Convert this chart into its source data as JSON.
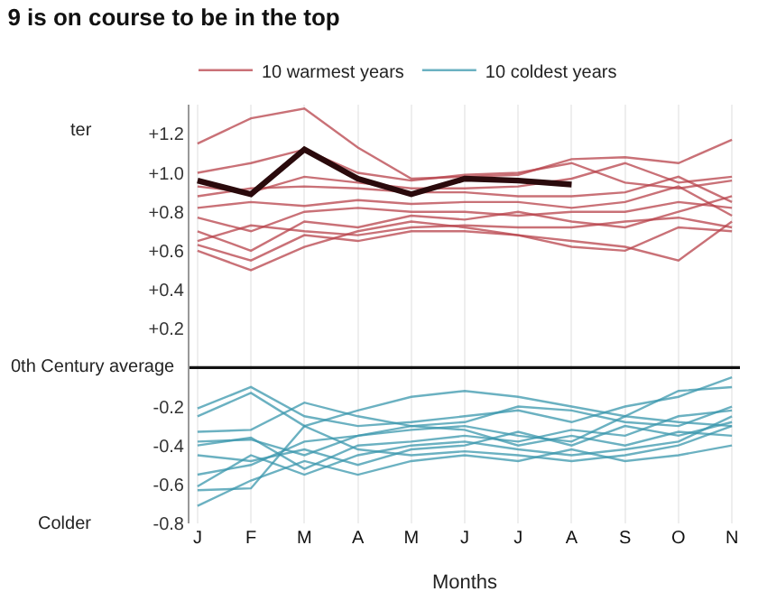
{
  "chart_data": {
    "type": "line",
    "title": "9 is on course to be in the top",
    "categories": [
      "J",
      "F",
      "M",
      "A",
      "M",
      "J",
      "J",
      "A",
      "S",
      "O",
      "N"
    ],
    "xlabel": "Months",
    "ylim": [
      -0.8,
      1.35
    ],
    "yticks": [
      {
        "value": 1.2,
        "label": "+1.2"
      },
      {
        "value": 1.0,
        "label": "+1.0"
      },
      {
        "value": 0.8,
        "label": "+0.8"
      },
      {
        "value": 0.6,
        "label": "+0.6"
      },
      {
        "value": 0.4,
        "label": "+0.4"
      },
      {
        "value": 0.2,
        "label": "+0.2"
      },
      -0.2,
      -0.4,
      -0.6,
      -0.8
    ],
    "grid": "x",
    "legend": "top left",
    "marker": "none",
    "line_style": "solid",
    "ref_lines": [
      {
        "axis": "y",
        "value": 0,
        "label": "0th Century average",
        "color": "#111111"
      }
    ],
    "annotations": [
      "ter",
      "Colder"
    ],
    "series": [
      {
        "name": "10 warmest years",
        "color": "#b8424a",
        "values": [
          1.15,
          1.28,
          1.33,
          1.13,
          0.97,
          0.98,
          0.99,
          1.07,
          1.08,
          1.05,
          1.17
        ]
      },
      {
        "color": "#b8424a",
        "values": [
          1.0,
          1.05,
          1.12,
          1.0,
          0.96,
          0.99,
          1.0,
          1.05,
          0.95,
          0.92,
          0.96
        ]
      },
      {
        "color": "#b8424a",
        "values": [
          0.93,
          0.9,
          0.98,
          0.95,
          0.92,
          0.92,
          0.93,
          0.97,
          1.05,
          0.95,
          0.98
        ]
      },
      {
        "color": "#b8424a",
        "values": [
          0.88,
          0.92,
          0.93,
          0.92,
          0.9,
          0.9,
          0.88,
          0.88,
          0.9,
          0.98,
          0.85
        ]
      },
      {
        "color": "#b8424a",
        "values": [
          0.82,
          0.85,
          0.83,
          0.86,
          0.84,
          0.85,
          0.85,
          0.82,
          0.85,
          0.93,
          0.78
        ]
      },
      {
        "color": "#b8424a",
        "values": [
          0.77,
          0.7,
          0.8,
          0.82,
          0.8,
          0.8,
          0.78,
          0.8,
          0.8,
          0.85,
          0.82
        ]
      },
      {
        "color": "#b8424a",
        "values": [
          0.7,
          0.6,
          0.75,
          0.72,
          0.78,
          0.76,
          0.8,
          0.75,
          0.72,
          0.8,
          0.88
        ]
      },
      {
        "color": "#b8424a",
        "values": [
          0.65,
          0.73,
          0.7,
          0.68,
          0.72,
          0.73,
          0.72,
          0.72,
          0.75,
          0.77,
          0.72
        ]
      },
      {
        "color": "#b8424a",
        "values": [
          0.63,
          0.55,
          0.68,
          0.65,
          0.7,
          0.7,
          0.68,
          0.65,
          0.62,
          0.55,
          0.75
        ]
      },
      {
        "color": "#b8424a",
        "values": [
          0.6,
          0.5,
          0.62,
          0.7,
          0.75,
          0.72,
          0.68,
          0.62,
          0.6,
          0.72,
          0.7
        ]
      },
      {
        "name": "10 coldest years",
        "color": "#3a97ad",
        "values": [
          -0.21,
          -0.1,
          -0.25,
          -0.3,
          -0.28,
          -0.25,
          -0.22,
          -0.28,
          -0.2,
          -0.15,
          -0.05
        ]
      },
      {
        "color": "#3a97ad",
        "values": [
          -0.25,
          -0.13,
          -0.3,
          -0.22,
          -0.15,
          -0.12,
          -0.15,
          -0.2,
          -0.25,
          -0.12,
          -0.1
        ]
      },
      {
        "color": "#3a97ad",
        "values": [
          -0.33,
          -0.32,
          -0.18,
          -0.25,
          -0.3,
          -0.28,
          -0.2,
          -0.22,
          -0.28,
          -0.3,
          -0.2
        ]
      },
      {
        "color": "#3a97ad",
        "values": [
          -0.38,
          -0.37,
          -0.45,
          -0.35,
          -0.32,
          -0.3,
          -0.35,
          -0.38,
          -0.25,
          -0.28,
          -0.3
        ]
      },
      {
        "color": "#3a97ad",
        "values": [
          -0.4,
          -0.36,
          -0.52,
          -0.4,
          -0.38,
          -0.35,
          -0.38,
          -0.32,
          -0.35,
          -0.25,
          -0.22
        ]
      },
      {
        "color": "#3a97ad",
        "values": [
          -0.45,
          -0.48,
          -0.42,
          -0.5,
          -0.42,
          -0.4,
          -0.33,
          -0.4,
          -0.3,
          -0.35,
          -0.28
        ]
      },
      {
        "color": "#3a97ad",
        "values": [
          -0.55,
          -0.5,
          -0.38,
          -0.35,
          -0.3,
          -0.32,
          -0.4,
          -0.35,
          -0.4,
          -0.33,
          -0.35
        ]
      },
      {
        "color": "#3a97ad",
        "values": [
          -0.61,
          -0.45,
          -0.55,
          -0.45,
          -0.4,
          -0.38,
          -0.42,
          -0.45,
          -0.42,
          -0.38,
          -0.25
        ]
      },
      {
        "color": "#3a97ad",
        "values": [
          -0.63,
          -0.62,
          -0.3,
          -0.42,
          -0.45,
          -0.43,
          -0.45,
          -0.48,
          -0.45,
          -0.4,
          -0.3
        ]
      },
      {
        "color": "#3a97ad",
        "values": [
          -0.71,
          -0.58,
          -0.48,
          -0.55,
          -0.48,
          -0.45,
          -0.48,
          -0.42,
          -0.48,
          -0.45,
          -0.4
        ]
      },
      {
        "color": "#2a0a0c",
        "values": [
          0.96,
          0.89,
          1.12,
          0.97,
          0.89,
          0.97,
          0.96,
          0.94,
          null,
          null,
          null
        ]
      }
    ]
  }
}
